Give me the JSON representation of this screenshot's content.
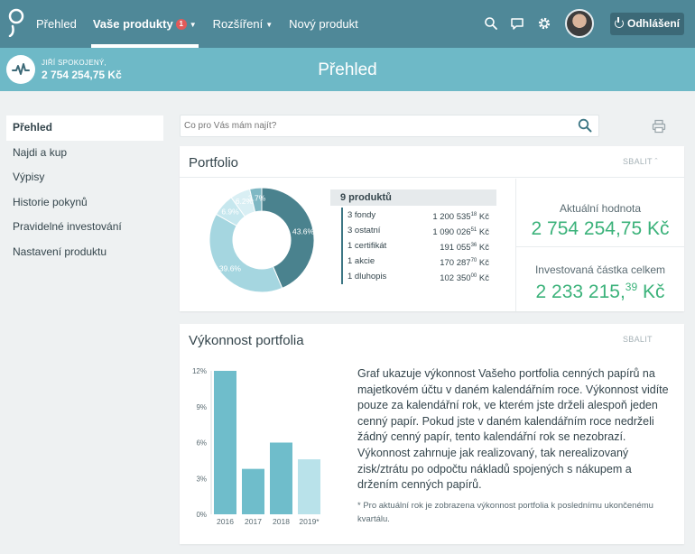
{
  "nav": {
    "items": [
      {
        "label": "Přehled",
        "active": false
      },
      {
        "label": "Vaše produkty",
        "active": true,
        "badge": "1",
        "dropdown": true
      },
      {
        "label": "Rozšíření",
        "active": false,
        "dropdown": true
      },
      {
        "label": "Nový produkt",
        "active": false
      }
    ],
    "icons": [
      "search-icon",
      "chat-icon",
      "gear-icon"
    ],
    "logout_label": "Odhlášení"
  },
  "user": {
    "name": "JIŘÍ SPOKOJENÝ,",
    "amount": "2 754 254,75 Kč"
  },
  "page_title": "Přehled",
  "sidebar": {
    "items": [
      {
        "label": "Přehled",
        "active": true
      },
      {
        "label": "Najdi a kup"
      },
      {
        "label": "Výpisy"
      },
      {
        "label": "Historie pokynů"
      },
      {
        "label": "Pravidelné investování"
      },
      {
        "label": "Nastavení produktu"
      }
    ]
  },
  "search": {
    "placeholder": "Co pro Vás mám najít?"
  },
  "portfolio": {
    "title": "Portfolio",
    "collapse_label": "SBALIT",
    "products_count": "9 produktů",
    "legend": [
      {
        "label": "3 fondy",
        "amount": "1 200 535",
        "dec": "18",
        "cur": "Kč"
      },
      {
        "label": "3 ostatní",
        "amount": "1 090 026",
        "dec": "51",
        "cur": "Kč"
      },
      {
        "label": "1 certifikát",
        "amount": "191 055",
        "dec": "36",
        "cur": "Kč"
      },
      {
        "label": "1 akcie",
        "amount": "170 287",
        "dec": "70",
        "cur": "Kč"
      },
      {
        "label": "1 dluhopis",
        "amount": "102 350",
        "dec": "00",
        "cur": "Kč"
      }
    ],
    "current_label": "Aktuální hodnota",
    "current_value": "2 754 254,75 Kč",
    "invested_label": "Investovaná částka celkem",
    "invested_main": "2 233 215,",
    "invested_dec": "39",
    "invested_cur": " Kč",
    "colors": {
      "accent": "#3bb27a"
    }
  },
  "donut_data": {
    "type": "pie",
    "slices": [
      {
        "label": "43.6%",
        "value": 43.6,
        "color": "#4a828e"
      },
      {
        "label": "39.6%",
        "value": 39.6,
        "color": "#a5d6e0"
      },
      {
        "label": "6.9%",
        "value": 6.9,
        "color": "#c6e7ee"
      },
      {
        "label": "6.2%",
        "value": 6.2,
        "color": "#d9eff4"
      },
      {
        "label": "3.7%",
        "value": 3.7,
        "color": "#7fb8c4"
      }
    ]
  },
  "performance": {
    "title": "Výkonnost portfolia",
    "collapse_label": "SBALIT",
    "description": "Graf ukazuje výkonnost Vašeho portfolia cenných papírů na majetkovém účtu v daném kalendářním roce. Výkonnost vidíte pouze za kalendářní rok, ve kterém jste drželi alespoň jeden cenný papír. Pokud jste v daném kalendářním roce nedrželi žádný cenný papír, tento kalendářní rok se nezobrazí. Výkonnost zahrnuje jak realizovaný, tak nerealizovaný zisk/ztrátu po odpočtu nákladů spojených s nákupem a držením cenných papírů.",
    "note": "* Pro aktuální rok je zobrazena výkonnost portfolia k poslednímu ukončenému kvartálu."
  },
  "chart_data": {
    "type": "bar",
    "categories": [
      "2016",
      "2017",
      "2018",
      "2019*"
    ],
    "values": [
      12,
      3.8,
      6,
      4.6
    ],
    "colors": [
      "#6fbdcb",
      "#6fbdcb",
      "#6fbdcb",
      "#b9e2ea"
    ],
    "ylim": [
      0,
      12
    ],
    "yticks": [
      "0%",
      "3%",
      "6%",
      "9%",
      "12%"
    ],
    "yticks_values": [
      0,
      3,
      6,
      9,
      12
    ],
    "grid": false
  }
}
